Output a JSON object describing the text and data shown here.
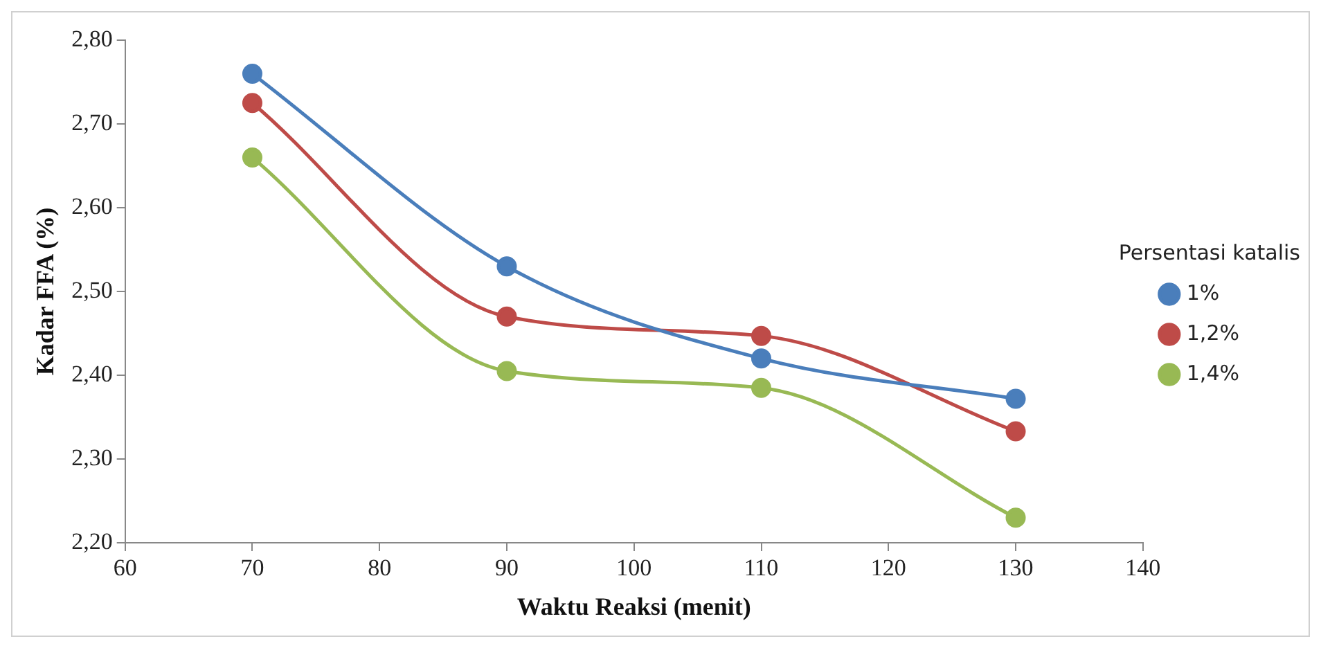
{
  "chart_data": {
    "type": "line",
    "xlabel": "Waktu Reaksi (menit)",
    "ylabel": "Kadar FFA (%)",
    "legend_title": "Persentasi katalis",
    "x": [
      70,
      90,
      110,
      130
    ],
    "series": [
      {
        "name": "1%",
        "color": "#4a7ebb",
        "values": [
          2.76,
          2.53,
          2.42,
          2.372
        ]
      },
      {
        "name": "1,2%",
        "color": "#be4b48",
        "values": [
          2.725,
          2.47,
          2.447,
          2.333
        ]
      },
      {
        "name": "1,4%",
        "color": "#98b954",
        "values": [
          2.66,
          2.405,
          2.385,
          2.23
        ]
      }
    ],
    "xlim": [
      60,
      140
    ],
    "xticks": [
      60,
      70,
      80,
      90,
      100,
      110,
      120,
      130,
      140
    ],
    "ylim": [
      2.2,
      2.8
    ],
    "yticks": [
      {
        "value": 2.2,
        "label": "2,20"
      },
      {
        "value": 2.3,
        "label": "2,30"
      },
      {
        "value": 2.4,
        "label": "2,40"
      },
      {
        "value": 2.5,
        "label": "2,50"
      },
      {
        "value": 2.6,
        "label": "2,60"
      },
      {
        "value": 2.7,
        "label": "2,70"
      },
      {
        "value": 2.8,
        "label": "2,80"
      }
    ],
    "grid": false,
    "legend": "right",
    "marker": "circle",
    "line_style": "solid"
  }
}
